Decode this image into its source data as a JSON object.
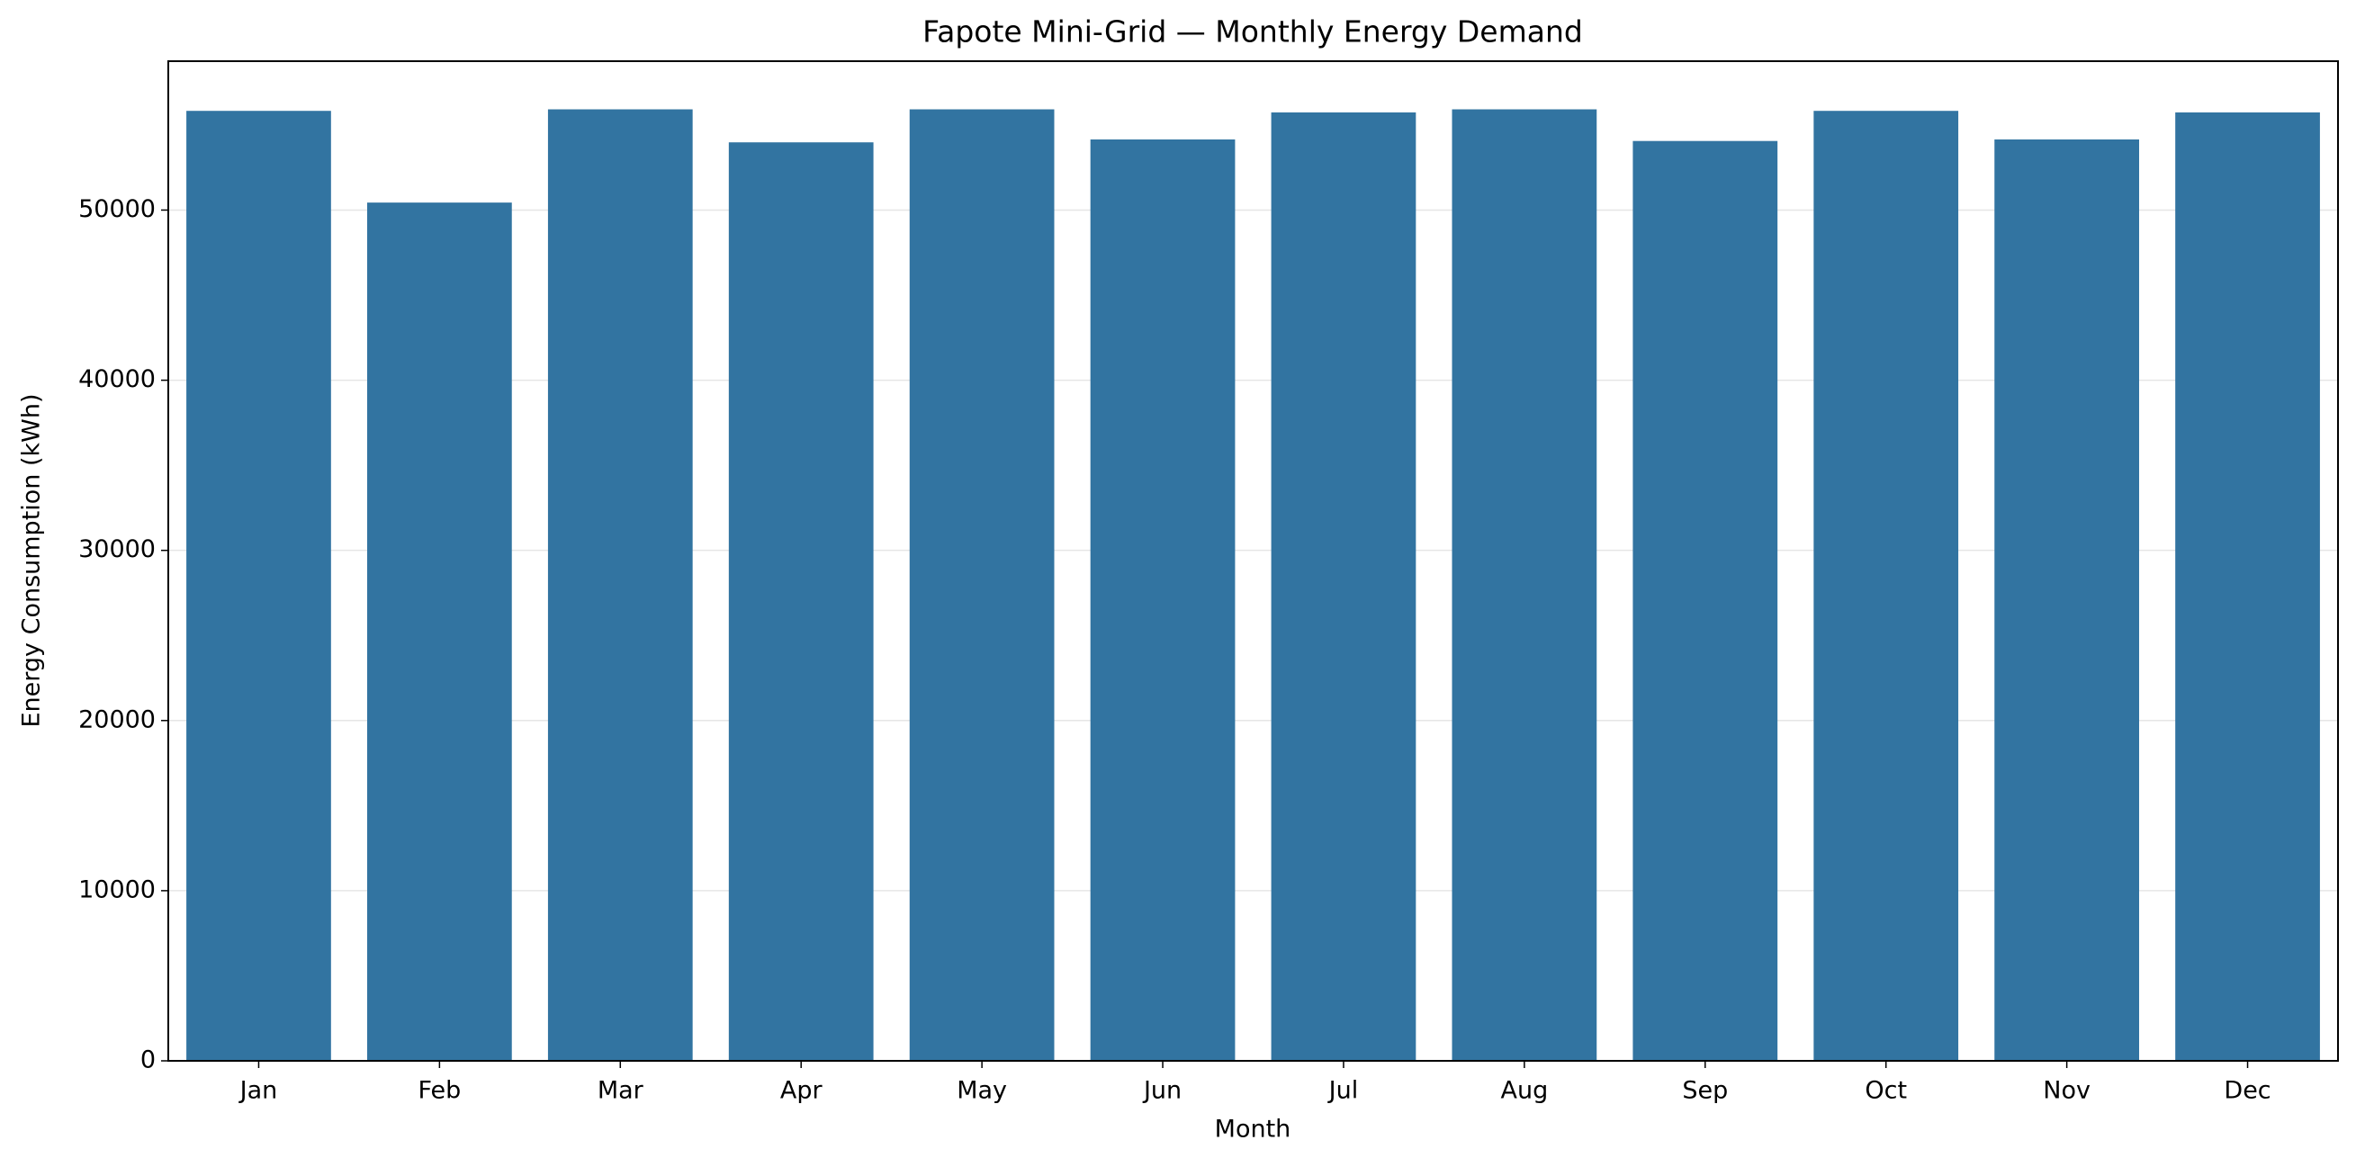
{
  "chart_data": {
    "type": "bar",
    "title": "Fapote Mini-Grid — Monthly Energy Demand",
    "x_label": "Month",
    "y_label": "Energy Consumption (kWh)",
    "categories": [
      "Jan",
      "Feb",
      "Mar",
      "Apr",
      "May",
      "Jun",
      "Jul",
      "Aug",
      "Sep",
      "Oct",
      "Nov",
      "Dec"
    ],
    "values": [
      55830,
      50440,
      55920,
      53980,
      55920,
      54150,
      55740,
      55920,
      54060,
      55830,
      54150,
      55740
    ],
    "color": "#3274a1",
    "ylim": [
      0,
      58750
    ],
    "yticks": [
      0,
      10000,
      20000,
      30000,
      40000,
      50000
    ],
    "grid": true
  }
}
